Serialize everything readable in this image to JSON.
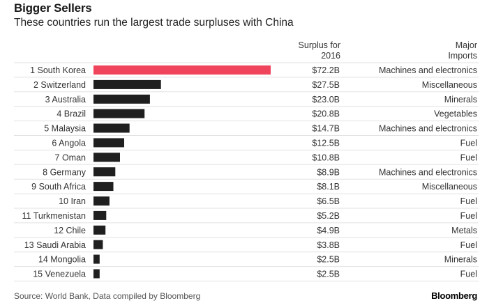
{
  "header": {
    "title": "Bigger Sellers",
    "subtitle": "These countries run the largest trade surpluses with China"
  },
  "columns": {
    "surplus_label_1": "Surplus for",
    "surplus_label_2": "2016",
    "imports_label_1": "Major",
    "imports_label_2": "Imports"
  },
  "colors": {
    "highlight": "#f0435c",
    "bar": "#1f1f1f",
    "row_rule": "#e2e2e2"
  },
  "footer": {
    "source": "Source: World Bank, Data compiled by Bloomberg",
    "brand": "Bloomberg"
  },
  "chart_data": {
    "type": "bar",
    "orientation": "horizontal",
    "unit": "USD billions",
    "categories": [
      "1 South Korea",
      "2 Switzerland",
      "3 Australia",
      "4 Brazil",
      "5 Malaysia",
      "6 Angola",
      "7 Oman",
      "8 Germany",
      "9 South Africa",
      "10 Iran",
      "11 Turkmenistan",
      "12 Chile",
      "13 Saudi Arabia",
      "14 Mongolia",
      "15 Venezuela"
    ],
    "values": [
      72.2,
      27.5,
      23.0,
      20.8,
      14.7,
      12.5,
      10.8,
      8.9,
      8.1,
      6.5,
      5.2,
      4.9,
      3.8,
      2.5,
      2.5
    ],
    "value_labels": [
      "$72.2B",
      "$27.5B",
      "$23.0B",
      "$20.8B",
      "$14.7B",
      "$12.5B",
      "$10.8B",
      "$8.9B",
      "$8.1B",
      "$6.5B",
      "$5.2B",
      "$4.9B",
      "$3.8B",
      "$2.5B",
      "$2.5B"
    ],
    "imports": [
      "Machines and electronics",
      "Miscellaneous",
      "Minerals",
      "Vegetables",
      "Machines and electronics",
      "Fuel",
      "Fuel",
      "Machines and electronics",
      "Miscellaneous",
      "Fuel",
      "Fuel",
      "Metals",
      "Fuel",
      "Minerals",
      "Fuel"
    ],
    "highlight_index": 0,
    "xlim": [
      0,
      72.2
    ],
    "grid": false,
    "legend": "none"
  }
}
